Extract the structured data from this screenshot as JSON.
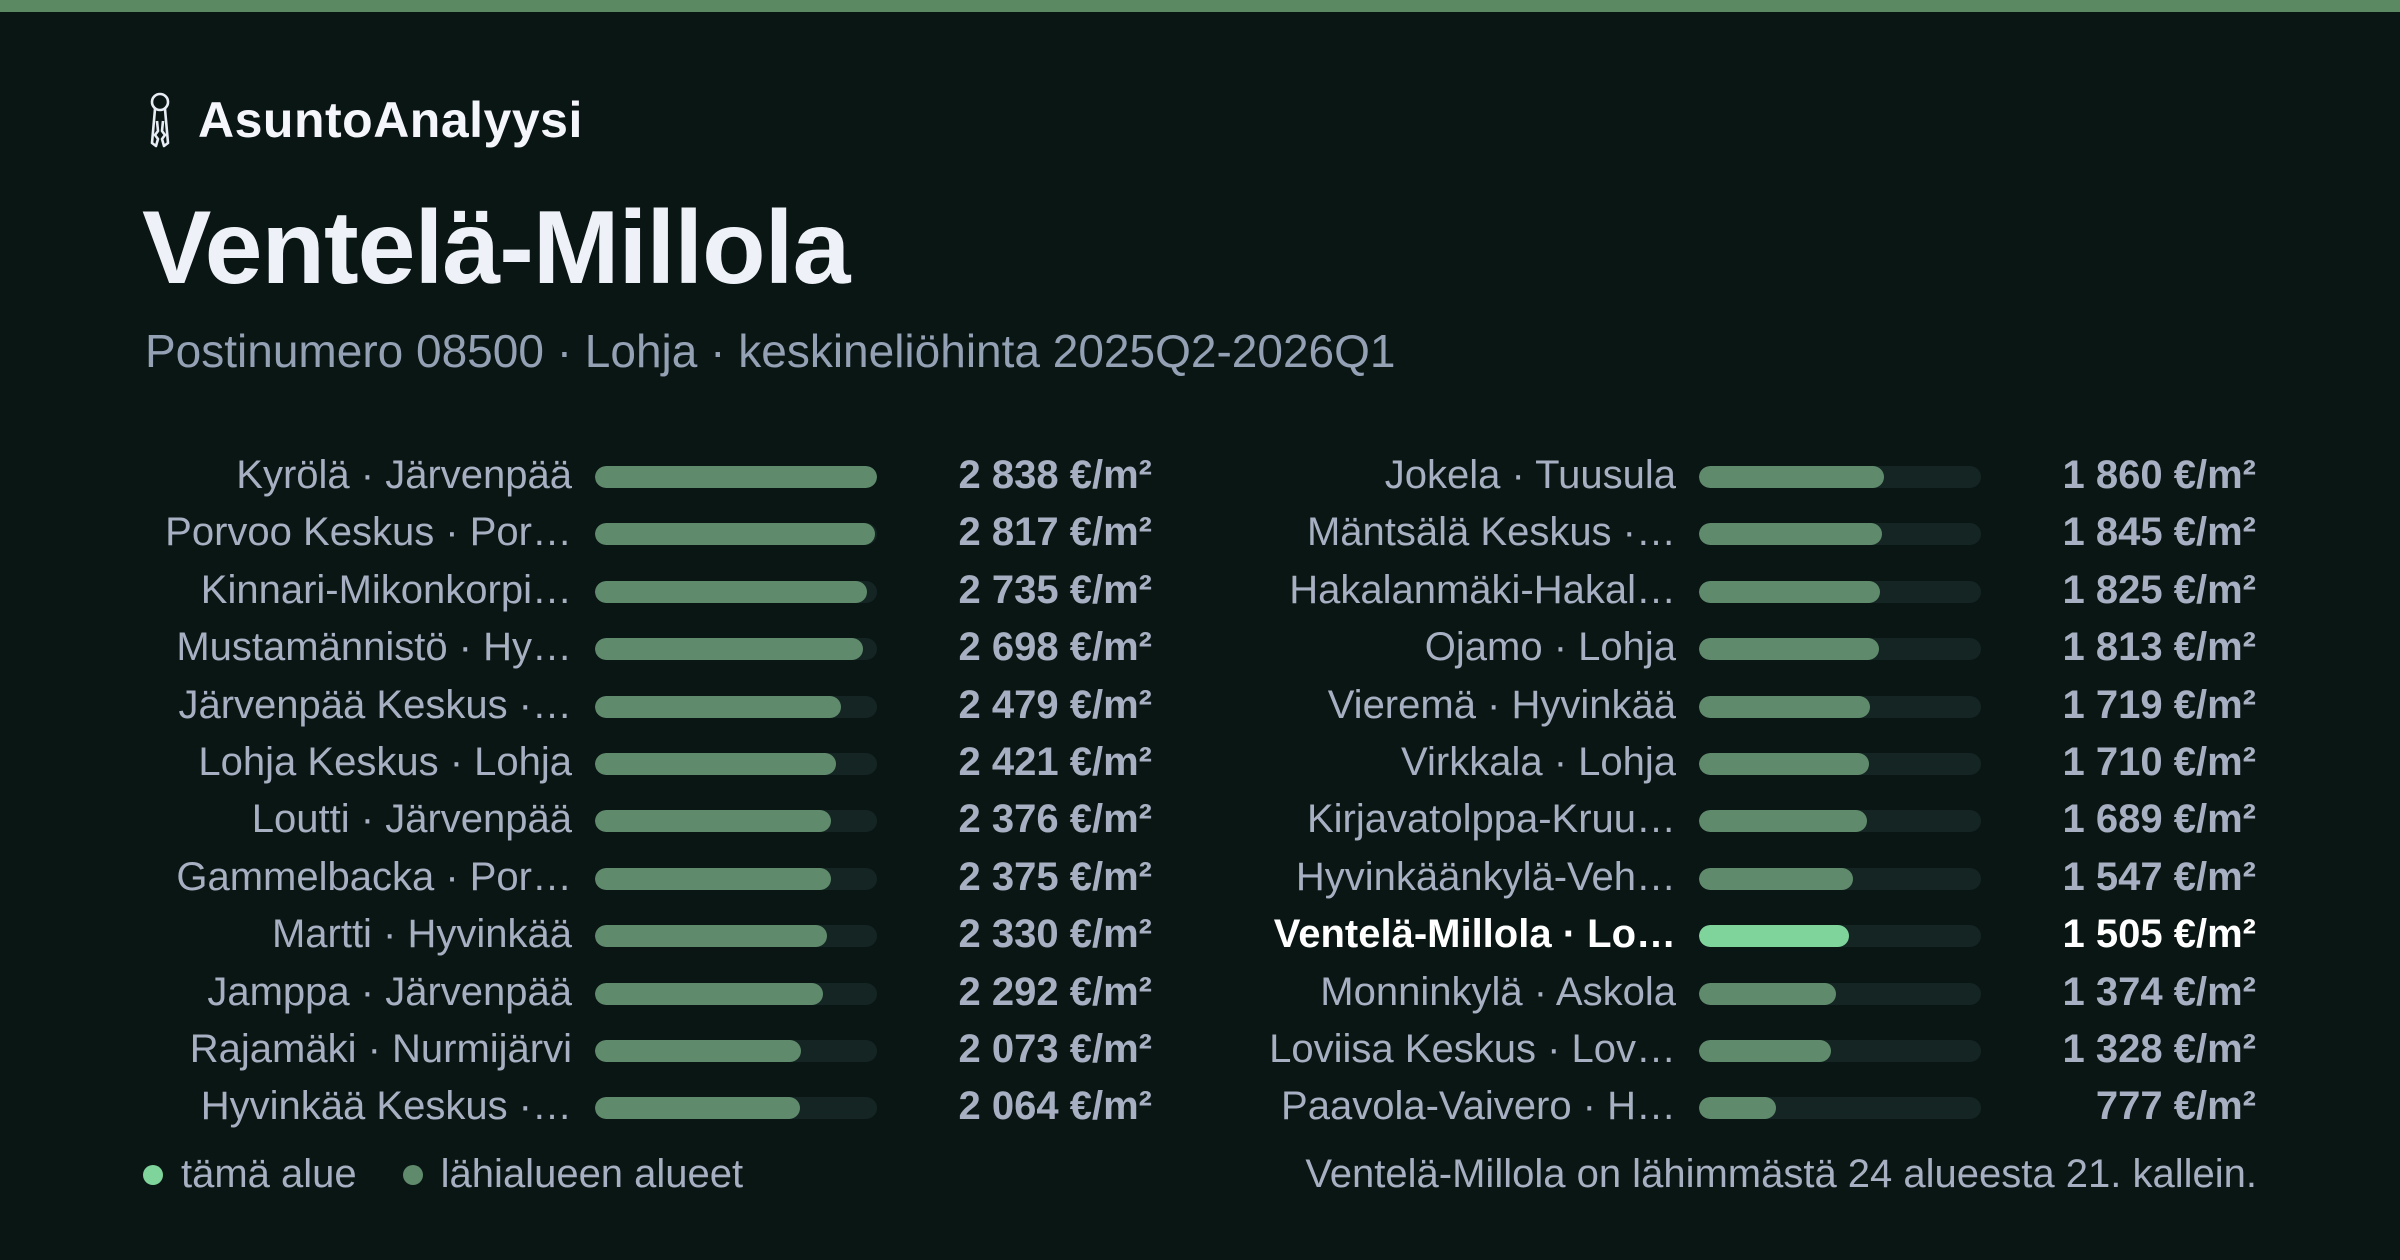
{
  "brand": {
    "icon": "keys-icon",
    "name": "AsuntoAnalyysi"
  },
  "title": "Ventelä-Millola",
  "subtitle": "Postinumero 08500 · Lohja · keskineliöhinta 2025Q2-2026Q1",
  "colors": {
    "accent": "#5b8a62",
    "bar_default": "#5f8a6c",
    "bar_highlight": "#7fd49c",
    "track": "#152523",
    "background": "#0a1614"
  },
  "chart_data": {
    "type": "bar",
    "orientation": "horizontal",
    "unit": "€/m²",
    "xlim": [
      0,
      2838
    ],
    "categories": [
      "Kyrölä · Järvenpää",
      "Porvoo Keskus · Por…",
      "Kinnari-Mikonkorpi…",
      "Mustamännistö · Hy…",
      "Järvenpää Keskus ·…",
      "Lohja Keskus · Lohja",
      "Loutti · Järvenpää",
      "Gammelbacka · Por…",
      "Martti · Hyvinkää",
      "Jamppa · Järvenpää",
      "Rajamäki · Nurmijärvi",
      "Hyvinkää Keskus ·…",
      "Jokela · Tuusula",
      "Mäntsälä Keskus ·…",
      "Hakalanmäki-Hakal…",
      "Ojamo · Lohja",
      "Vieremä · Hyvinkää",
      "Virkkala · Lohja",
      "Kirjavatolppa-Kruu…",
      "Hyvinkäänkylä-Veh…",
      "Ventelä-Millola · Lo…",
      "Monninkylä · Askola",
      "Loviisa Keskus · Lov…",
      "Paavola-Vaivero · H…"
    ],
    "values": [
      2838,
      2817,
      2735,
      2698,
      2479,
      2421,
      2376,
      2375,
      2330,
      2292,
      2073,
      2064,
      1860,
      1845,
      1825,
      1813,
      1719,
      1710,
      1689,
      1547,
      1505,
      1374,
      1328,
      777
    ],
    "value_labels": [
      "2 838 €/m²",
      "2 817 €/m²",
      "2 735 €/m²",
      "2 698 €/m²",
      "2 479 €/m²",
      "2 421 €/m²",
      "2 376 €/m²",
      "2 375 €/m²",
      "2 330 €/m²",
      "2 292 €/m²",
      "2 073 €/m²",
      "2 064 €/m²",
      "1 860 €/m²",
      "1 845 €/m²",
      "1 825 €/m²",
      "1 813 €/m²",
      "1 719 €/m²",
      "1 710 €/m²",
      "1 689 €/m²",
      "1 547 €/m²",
      "1 505 €/m²",
      "1 374 €/m²",
      "1 328 €/m²",
      "777 €/m²"
    ],
    "highlight_index": 20,
    "columns": 2,
    "rows_per_column": 12
  },
  "legend": {
    "current_label": "tämä alue",
    "nearby_label": "lähialueen alueet"
  },
  "footnote": "Ventelä-Millola on lähimmästä 24 alueesta 21. kallein."
}
